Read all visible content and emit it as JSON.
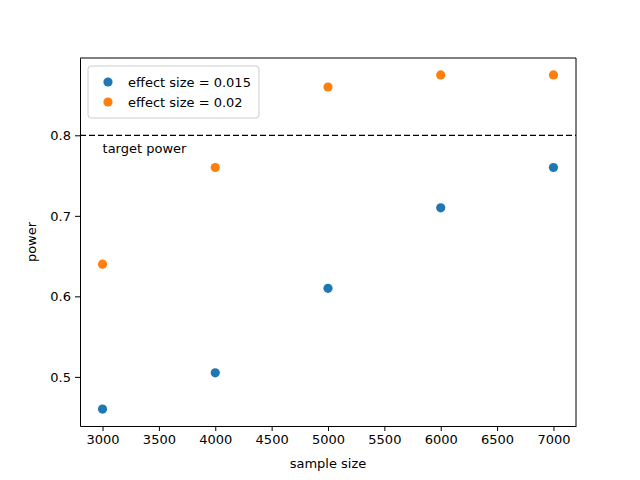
{
  "chart_data": {
    "type": "scatter",
    "x": [
      3000,
      4000,
      5000,
      6000,
      7000
    ],
    "series": [
      {
        "name": "effect size = 0.015",
        "color": "#1f77b4",
        "marker": "circle",
        "values": [
          0.46,
          0.505,
          0.61,
          0.71,
          0.76
        ]
      },
      {
        "name": "effect size = 0.02",
        "color": "#ff7f0e",
        "marker": "circle",
        "values": [
          0.64,
          0.76,
          0.86,
          0.875,
          0.875
        ]
      }
    ],
    "x_label": "sample size",
    "y_label": "power",
    "xlim": [
      2800,
      7200
    ],
    "ylim": [
      0.439,
      0.896
    ],
    "xticks": [
      3000,
      3500,
      4000,
      4500,
      5000,
      5500,
      6000,
      6500,
      7000
    ],
    "yticks": [
      0.5,
      0.6,
      0.7,
      0.8
    ],
    "legend": "upper left",
    "annotations": [
      {
        "text": "target power",
        "y": 0.8,
        "line_style": "dashed"
      }
    ]
  }
}
